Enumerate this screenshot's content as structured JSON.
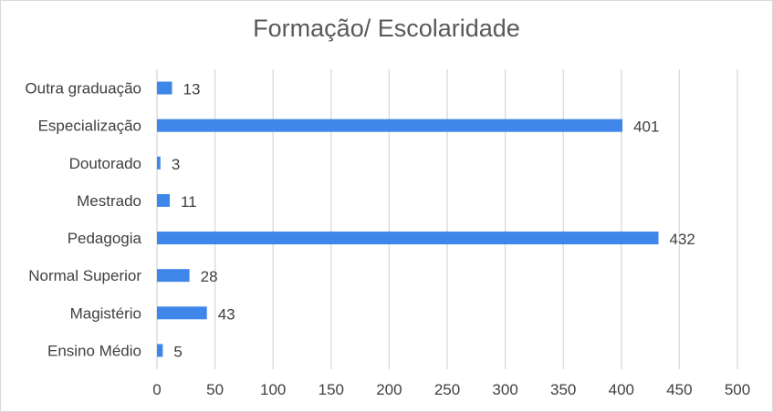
{
  "chart_data": {
    "type": "bar",
    "orientation": "horizontal",
    "title": "Formação/ Escolaridade",
    "xlabel": "",
    "ylabel": "",
    "categories": [
      "Outra graduação",
      "Especialização",
      "Doutorado",
      "Mestrado",
      "Pedagogia",
      "Normal Superior",
      "Magistério",
      "Ensino Médio"
    ],
    "values": [
      13,
      401,
      3,
      11,
      432,
      28,
      43,
      5
    ],
    "xlim": [
      0,
      500
    ],
    "xticks": [
      0,
      50,
      100,
      150,
      200,
      250,
      300,
      350,
      400,
      450,
      500
    ],
    "grid": "vertical",
    "legend": "none",
    "colors": {
      "bar": "#3f86eb",
      "grid": "#d9d9d9",
      "text": "#404040",
      "title": "#595959"
    }
  }
}
